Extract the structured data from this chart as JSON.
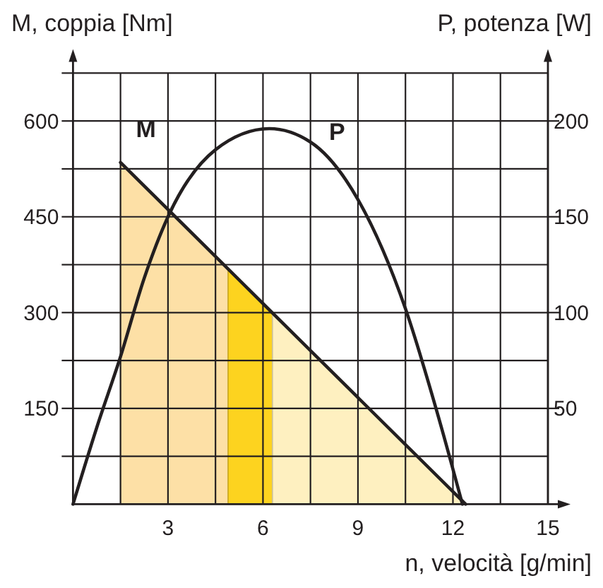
{
  "chart_data": {
    "type": "line",
    "xlabel": "n, velocità [g/min]",
    "ylabel": "M, coppia [Nm]",
    "y2label": "P, potenza [W]",
    "xlim": [
      0,
      15
    ],
    "xticks": [
      {
        "value": 1.5,
        "label": null
      },
      3,
      {
        "value": 4.5,
        "label": null
      },
      6,
      {
        "value": 7.5,
        "label": null
      },
      9,
      {
        "value": 10.5,
        "label": null
      },
      12,
      {
        "value": 13.5,
        "label": null
      },
      15
    ],
    "ylim": [
      0,
      675
    ],
    "yticks": [
      {
        "value": 75,
        "label": null
      },
      150,
      {
        "value": 225,
        "label": null
      },
      300,
      {
        "value": 375,
        "label": null
      },
      450,
      {
        "value": 525,
        "label": null
      },
      600,
      {
        "value": 675,
        "label": null
      }
    ],
    "y2lim": [
      0,
      225
    ],
    "y2ticks": [
      50,
      100,
      150,
      200
    ],
    "grid": true,
    "marker": "none",
    "line_style": "solid",
    "series": [
      {
        "type": "area",
        "color": "#fde0a6",
        "x": [
          1.5,
          4.9
        ],
        "values": [
          535,
          368
        ]
      },
      {
        "type": "area",
        "color": "#fdd31f",
        "x": [
          4.9,
          6.3
        ],
        "values": [
          368,
          299
        ]
      },
      {
        "type": "area",
        "color": "#fef0c0",
        "x": [
          6.3,
          12.4
        ],
        "values": [
          299,
          0
        ]
      },
      {
        "name": "M",
        "color": "#231f20",
        "x": [
          1.5,
          12.4
        ],
        "values": [
          535,
          0
        ]
      },
      {
        "name": "P",
        "color": "#231f20",
        "axis": "y2",
        "x": [
          0,
          0.75,
          1.5,
          2.25,
          3,
          4.5,
          6.2,
          7.5,
          9,
          10.5,
          11.5,
          12.3
        ],
        "values": [
          0,
          40,
          77,
          118,
          150,
          185,
          196,
          189,
          159,
          102,
          48,
          0
        ]
      }
    ]
  }
}
